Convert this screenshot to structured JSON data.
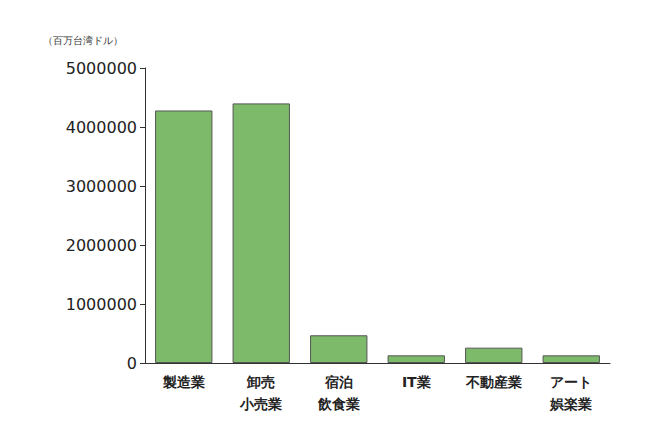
{
  "chart_data": {
    "type": "bar",
    "y_label": "（百万台湾ドル）",
    "categories": [
      "製造業",
      "卸売\n小売業",
      "宿泊\n飲食業",
      "IT業",
      "不動産業",
      "アート\n娯楽業"
    ],
    "values": [
      4280000,
      4400000,
      470000,
      130000,
      260000,
      130000
    ],
    "color": "#7dbb6a",
    "ylim": [
      0,
      5000000
    ],
    "yticks": [
      0,
      1000000,
      2000000,
      3000000,
      4000000,
      5000000
    ],
    "grid": false
  }
}
